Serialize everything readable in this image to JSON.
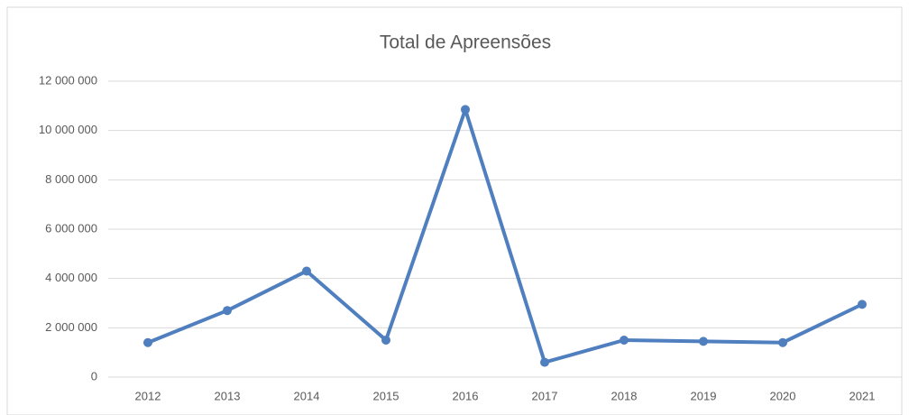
{
  "chart_data": {
    "type": "line",
    "title": "Total de Apreensões",
    "categories": [
      "2012",
      "2013",
      "2014",
      "2015",
      "2016",
      "2017",
      "2018",
      "2019",
      "2020",
      "2021"
    ],
    "series": [
      {
        "name": "Total de Apreensões",
        "color": "#4f7fbf",
        "values": [
          1400000,
          2700000,
          4300000,
          1500000,
          10850000,
          600000,
          1500000,
          1450000,
          1400000,
          2950000
        ]
      }
    ],
    "ylim": [
      0,
      12000000
    ],
    "yticks": [
      0,
      {
        "value": 2000000,
        "label": "2 000 000"
      },
      {
        "value": 4000000,
        "label": "4 000 000"
      },
      {
        "value": 6000000,
        "label": "6 000 000"
      },
      {
        "value": 8000000,
        "label": "8 000 000"
      },
      {
        "value": 10000000,
        "label": "10 000 000"
      },
      {
        "value": 12000000,
        "label": "12 000 000"
      }
    ],
    "grid": true
  }
}
